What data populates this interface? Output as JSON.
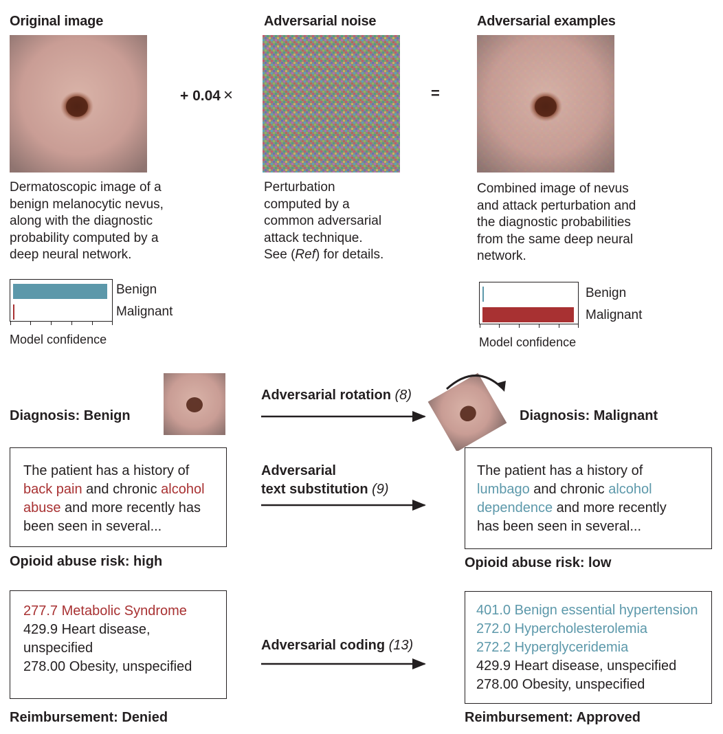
{
  "top": {
    "original": {
      "title": "Original image",
      "caption": [
        "Dermatoscopic image of a",
        "benign melanocytic nevus,",
        "along with the diagnostic",
        "probability computed by a",
        "deep neural network."
      ],
      "bars": [
        {
          "label": "Benign",
          "value": 0.99,
          "color": "#5c98aa"
        },
        {
          "label": "Malignant",
          "value": 0.01,
          "color": "#a83132"
        }
      ],
      "axis_label": "Model confidence"
    },
    "operator": "+ 0.04",
    "times": "×",
    "equals": "=",
    "noise": {
      "title": "Adversarial noise",
      "caption_lines": [
        "Perturbation",
        "computed by a",
        "common adversarial",
        "attack technique."
      ],
      "see_prefix": "See (",
      "ref": "Ref",
      "see_suffix": ") for details."
    },
    "adversarial": {
      "title": "Adversarial examples",
      "caption": [
        "Combined image of nevus",
        "and attack perturbation and",
        "the diagnostic probabilities",
        "from the same deep neural",
        "network."
      ],
      "bars": [
        {
          "label": "Benign",
          "value": 0.01,
          "color": "#5c98aa"
        },
        {
          "label": "Malignant",
          "value": 0.99,
          "color": "#a83132"
        }
      ],
      "axis_label": "Model confidence"
    }
  },
  "rotation": {
    "left_label": "Diagnosis: Benign",
    "arrow_label": "Adversarial rotation",
    "arrow_ref": "(8)",
    "right_label": "Diagnosis: Malignant"
  },
  "text_sub": {
    "left_text": {
      "l1": "The patient has a history of",
      "term1": "back pain",
      "mid1": " and chronic ",
      "term2": "alcohol",
      "term2b": "abuse",
      "mid2": " and more recently has",
      "l4": "been seen in several..."
    },
    "arrow_label_1": "Adversarial",
    "arrow_label_2": "text substitution",
    "arrow_ref": "(9)",
    "right_text": {
      "l1": "The patient has a history of",
      "term1": "lumbago",
      "mid1": " and chronic ",
      "term2": "alcohol",
      "term2b": "dependence",
      "mid2": " and more recently",
      "l4": "has been seen in several..."
    },
    "left_label": "Opioid abuse risk: high",
    "right_label": "Opioid abuse risk: low"
  },
  "coding": {
    "left_codes": [
      {
        "text": "277.7 Metabolic Syndrome",
        "color": "#a83132"
      },
      {
        "text": "429.9 Heart disease,",
        "color": "#231f20"
      },
      {
        "text": "unspecified",
        "color": "#231f20"
      },
      {
        "text": "278.00 Obesity, unspecified",
        "color": "#231f20"
      }
    ],
    "arrow_label": "Adversarial coding",
    "arrow_ref": "(13)",
    "right_codes": [
      {
        "text": "401.0 Benign essential hypertension",
        "color": "#5c98aa"
      },
      {
        "text": "272.0 Hypercholesterolemia",
        "color": "#5c98aa"
      },
      {
        "text": "272.2 Hyperglyceridemia",
        "color": "#5c98aa"
      },
      {
        "text": "429.9 Heart disease, unspecified",
        "color": "#231f20"
      },
      {
        "text": "278.00 Obesity, unspecified",
        "color": "#231f20"
      }
    ],
    "left_label": "Reimbursement: Denied",
    "right_label": "Reimbursement: Approved"
  }
}
